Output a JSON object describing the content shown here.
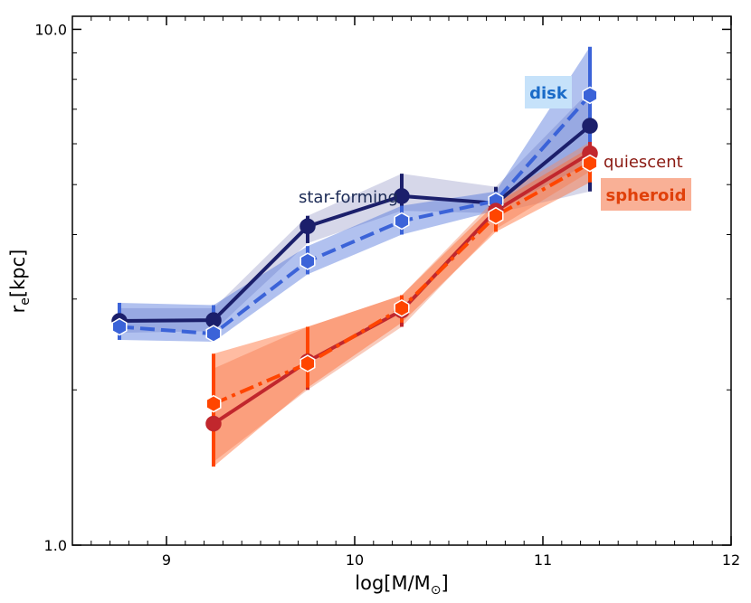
{
  "chart_data": {
    "type": "line",
    "x_axis": {
      "label_main": "log[M/M",
      "label_sub": "⊙",
      "label_close": "]",
      "range": [
        8.5,
        12
      ],
      "ticks": [
        "9",
        "10",
        "11",
        "12"
      ],
      "tick_values": [
        9,
        10,
        11,
        12
      ]
    },
    "y_axis": {
      "label_main": "r",
      "label_sub": "e",
      "label_unit": "[kpc]",
      "scale": "log",
      "range": [
        1.0,
        10.6
      ],
      "ticks": [
        "1.0",
        "10.0"
      ],
      "tick_values": [
        1.0,
        10.0
      ]
    },
    "series": [
      {
        "name": "star-forming",
        "color": "#1b1f6b",
        "band_color": "#8a8cbf",
        "band_opacity": 0.35,
        "line_style": "solid",
        "marker": "circle",
        "x": [
          8.75,
          9.25,
          9.75,
          10.25,
          10.75,
          11.25
        ],
        "y": [
          2.72,
          2.73,
          4.15,
          4.75,
          4.6,
          6.5
        ],
        "y_low": [
          2.58,
          2.6,
          3.85,
          4.45,
          4.4,
          4.85
        ],
        "y_high": [
          2.88,
          2.88,
          4.35,
          5.25,
          4.95,
          7.6
        ]
      },
      {
        "name": "disk",
        "color": "#3b63d8",
        "band_color": "#3b63d8",
        "band_opacity": 0.4,
        "line_style": "dashed",
        "marker": "hexagon",
        "x": [
          8.75,
          9.25,
          9.75,
          10.25,
          10.75,
          11.25
        ],
        "y": [
          2.65,
          2.57,
          3.55,
          4.25,
          4.65,
          7.45
        ],
        "y_low": [
          2.5,
          2.48,
          3.35,
          4.0,
          4.45,
          5.5
        ],
        "y_high": [
          2.95,
          2.92,
          3.8,
          4.55,
          4.85,
          9.25
        ]
      },
      {
        "name": "quiescent",
        "color": "#c1272d",
        "band_color": "#f08b6a",
        "band_opacity": 0.45,
        "line_style": "solid",
        "marker": "circle",
        "x": [
          9.25,
          9.75,
          10.25,
          10.75,
          11.25
        ],
        "y": [
          1.72,
          2.27,
          2.85,
          4.45,
          5.75
        ],
        "y_low": [
          1.45,
          2.0,
          2.65,
          4.1,
          5.3
        ],
        "y_high": [
          2.2,
          2.65,
          3.05,
          4.7,
          6.05
        ]
      },
      {
        "name": "spheroid",
        "color": "#ff4500",
        "band_color": "#ff6a30",
        "band_opacity": 0.45,
        "line_style": "dashdot",
        "marker": "hexagon",
        "x": [
          9.25,
          9.75,
          10.25,
          10.75,
          11.25
        ],
        "y": [
          1.88,
          2.25,
          2.88,
          4.35,
          5.5
        ],
        "y_low": [
          1.42,
          2.02,
          2.7,
          4.05,
          5.05
        ],
        "y_high": [
          2.35,
          2.65,
          3.05,
          4.6,
          5.9
        ]
      }
    ],
    "annotations": {
      "star_forming": "star-forming",
      "disk": "disk",
      "quiescent": "quiescent",
      "spheroid": "spheroid"
    },
    "colors": {
      "disk_box": "#c6e2fa",
      "disk_text": "#1a6bc8",
      "spheroid_box": "#f9b096",
      "spheroid_text": "#e0400a",
      "quiescent_text": "#8b1a12",
      "star_forming_text": "#1b2a55"
    }
  }
}
